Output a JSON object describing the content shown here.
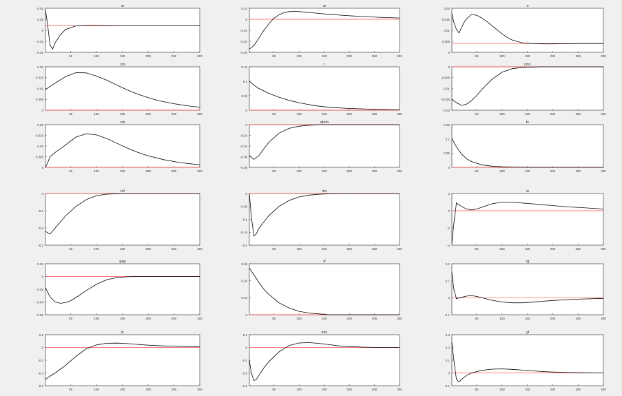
{
  "figure": {
    "background": "#f0f0f0",
    "axes_color": "#ffffff",
    "line_color": "#000000",
    "zero_color": "#ff4d4d"
  },
  "chart_data": [
    {
      "type": "line",
      "title": "w",
      "xlim": [
        1,
        300
      ],
      "ylim": [
        -0.03,
        0.02
      ],
      "yticks": [
        "0.02",
        "0.01",
        "0",
        "-0.01",
        "-0.02"
      ],
      "xticks": [
        "50",
        "100",
        "150",
        "200",
        "250",
        "300"
      ],
      "series": [
        {
          "x": [
            1,
            5,
            10,
            15,
            20,
            30,
            40,
            60,
            80,
            100,
            150,
            200,
            250,
            300
          ],
          "y": [
            0.018,
            0.002,
            -0.022,
            -0.026,
            -0.019,
            -0.01,
            -0.004,
            0.0,
            0.0005,
            0.0005,
            0.0,
            0.0,
            0.0,
            0.0
          ]
        }
      ]
    },
    {
      "type": "line",
      "title": "w",
      "xlim": [
        1,
        300
      ],
      "ylim": [
        -0.03,
        0.01
      ],
      "yticks": [
        "0.01",
        "0",
        "-0.01",
        "-0.02",
        "-0.03"
      ],
      "xticks": [
        "50",
        "100",
        "150",
        "200",
        "250",
        "300"
      ],
      "series": [
        {
          "x": [
            1,
            10,
            20,
            30,
            40,
            50,
            60,
            70,
            80,
            90,
            100,
            120,
            140,
            160,
            180,
            200,
            230,
            260,
            300
          ],
          "y": [
            -0.027,
            -0.024,
            -0.017,
            -0.01,
            -0.004,
            0.001,
            0.004,
            0.006,
            0.007,
            0.0072,
            0.007,
            0.0062,
            0.0053,
            0.0045,
            0.0038,
            0.0032,
            0.0025,
            0.0018,
            0.0012
          ]
        }
      ]
    },
    {
      "type": "line",
      "title": "n",
      "xlim": [
        1,
        300
      ],
      "ylim": [
        -0.005,
        0.02
      ],
      "yticks": [
        "0.02",
        "0.015",
        "0.01",
        "0.005",
        "0"
      ],
      "xticks": [
        "50",
        "100",
        "150",
        "200",
        "250",
        "300"
      ],
      "series": [
        {
          "x": [
            1,
            5,
            10,
            15,
            20,
            25,
            30,
            40,
            50,
            60,
            70,
            80,
            90,
            100,
            110,
            120,
            140,
            160,
            180,
            200,
            230,
            260,
            300
          ],
          "y": [
            0.017,
            0.012,
            0.008,
            0.006,
            0.009,
            0.012,
            0.014,
            0.0165,
            0.016,
            0.0145,
            0.0125,
            0.0102,
            0.0078,
            0.0055,
            0.0035,
            0.002,
            0.0004,
            0.0,
            -0.0002,
            -0.0002,
            -0.0001,
            0.0,
            0.0
          ]
        }
      ]
    },
    {
      "type": "line",
      "title": "cm",
      "xlim": [
        1,
        300
      ],
      "ylim": [
        0,
        0.02
      ],
      "yticks": [
        "0.02",
        "0.015",
        "0.01",
        "0.005",
        "0"
      ],
      "xticks": [
        "50",
        "100",
        "150",
        "200",
        "250",
        "300"
      ],
      "series": [
        {
          "x": [
            1,
            20,
            40,
            60,
            80,
            100,
            120,
            140,
            160,
            180,
            200,
            220,
            250,
            280,
            300
          ],
          "y": [
            0.0095,
            0.0125,
            0.0155,
            0.0173,
            0.0172,
            0.0157,
            0.0138,
            0.0115,
            0.0093,
            0.0074,
            0.0058,
            0.0044,
            0.003,
            0.0019,
            0.0014
          ]
        }
      ]
    },
    {
      "type": "line",
      "title": "r",
      "xlim": [
        1,
        300
      ],
      "ylim": [
        0,
        0.15
      ],
      "yticks": [
        "0.15",
        "0.1",
        "0.05",
        "0"
      ],
      "xticks": [
        "50",
        "100",
        "150",
        "200",
        "250",
        "300"
      ],
      "series": [
        {
          "x": [
            1,
            10,
            20,
            40,
            60,
            80,
            100,
            130,
            160,
            200,
            250,
            300
          ],
          "y": [
            0.1,
            0.087,
            0.075,
            0.058,
            0.045,
            0.034,
            0.026,
            0.016,
            0.01,
            0.006,
            0.003,
            0.001
          ]
        }
      ]
    },
    {
      "type": "line",
      "title": "cm1",
      "xlim": [
        1,
        300
      ],
      "ylim": [
        -0.02,
        0
      ],
      "yticks": [
        "0",
        "-0.005",
        "-0.01",
        "-0.015",
        "-0.02"
      ],
      "xticks": [
        "50",
        "100",
        "150",
        "200",
        "250",
        "300"
      ],
      "series": [
        {
          "x": [
            1,
            10,
            20,
            30,
            40,
            50,
            60,
            80,
            100,
            120,
            140,
            160,
            180,
            200,
            230,
            260,
            300
          ],
          "y": [
            -0.015,
            -0.0165,
            -0.0178,
            -0.0172,
            -0.0155,
            -0.0132,
            -0.0105,
            -0.0058,
            -0.0025,
            -0.0009,
            -0.0003,
            -0.0001,
            0.0,
            0.0,
            0.0,
            0.0,
            0.0
          ]
        }
      ]
    },
    {
      "type": "line",
      "title": "cm",
      "xlim": [
        1,
        300
      ],
      "ylim": [
        0,
        0.02
      ],
      "yticks": [
        "0.02",
        "0.015",
        "0.01",
        "0.005",
        "0"
      ],
      "xticks": [
        "50",
        "100",
        "150",
        "200",
        "250",
        "300"
      ],
      "series": [
        {
          "x": [
            1,
            5,
            10,
            20,
            40,
            60,
            80,
            100,
            120,
            140,
            160,
            180,
            200,
            230,
            260,
            300
          ],
          "y": [
            0.0,
            0.002,
            0.005,
            0.007,
            0.0105,
            0.0142,
            0.0157,
            0.0152,
            0.0135,
            0.0112,
            0.009,
            0.007,
            0.0054,
            0.0036,
            0.0023,
            0.0012
          ]
        }
      ]
    },
    {
      "type": "line",
      "title": "dinfo",
      "xlim": [
        1,
        300
      ],
      "ylim": [
        -0.08,
        0
      ],
      "yticks": [
        "0",
        "-0.02",
        "-0.04",
        "-0.06",
        "-0.08"
      ],
      "xticks": [
        "50",
        "100",
        "150",
        "200",
        "250",
        "300"
      ],
      "series": [
        {
          "x": [
            1,
            10,
            20,
            30,
            40,
            60,
            80,
            100,
            120,
            140,
            160,
            180,
            200,
            230,
            260,
            300
          ],
          "y": [
            -0.058,
            -0.065,
            -0.058,
            -0.045,
            -0.033,
            -0.016,
            -0.007,
            -0.003,
            -0.001,
            0.0,
            0.0,
            0.0,
            0.0,
            0.0,
            0.0,
            0.0
          ]
        }
      ]
    },
    {
      "type": "line",
      "title": "fc",
      "xlim": [
        1,
        300
      ],
      "ylim": [
        0,
        0.15
      ],
      "yticks": [
        "0.15",
        "0.1",
        "0.05",
        "0"
      ],
      "xticks": [
        "50",
        "100",
        "150",
        "200",
        "250",
        "300"
      ],
      "series": [
        {
          "x": [
            1,
            5,
            10,
            20,
            30,
            40,
            60,
            80,
            100,
            130,
            160,
            200,
            250,
            300
          ],
          "y": [
            0.1,
            0.088,
            0.072,
            0.047,
            0.03,
            0.02,
            0.009,
            0.004,
            0.002,
            0.001,
            0.0,
            0.0,
            0.0,
            0.0
          ]
        }
      ]
    },
    {
      "type": "line",
      "title": "inf",
      "xlim": [
        1,
        300
      ],
      "ylim": [
        -0.3,
        0
      ],
      "yticks": [
        "0",
        "-0.1",
        "-0.2",
        "-0.3"
      ],
      "xticks": [
        "50",
        "100",
        "150",
        "200",
        "250",
        "300"
      ],
      "series": [
        {
          "x": [
            1,
            10,
            20,
            30,
            40,
            60,
            80,
            100,
            120,
            140,
            160,
            180,
            200,
            230,
            260,
            300
          ],
          "y": [
            -0.22,
            -0.235,
            -0.2,
            -0.165,
            -0.13,
            -0.075,
            -0.035,
            -0.012,
            -0.004,
            -0.001,
            0.0,
            0.0,
            0.0,
            0.0,
            0.0,
            0.0
          ]
        }
      ]
    },
    {
      "type": "line",
      "title": "inv",
      "xlim": [
        1,
        300
      ],
      "ylim": [
        -0.2,
        0
      ],
      "yticks": [
        "0",
        "-0.05",
        "-0.1",
        "-0.15",
        "-0.2"
      ],
      "xticks": [
        "50",
        "100",
        "150",
        "200",
        "250",
        "300"
      ],
      "series": [
        {
          "x": [
            1,
            5,
            10,
            15,
            20,
            30,
            40,
            60,
            80,
            100,
            120,
            140,
            160,
            200,
            250,
            300
          ],
          "y": [
            0.0,
            -0.09,
            -0.165,
            -0.155,
            -0.135,
            -0.11,
            -0.085,
            -0.05,
            -0.027,
            -0.013,
            -0.006,
            -0.003,
            -0.001,
            0.0,
            0.0,
            0.0
          ]
        }
      ]
    },
    {
      "type": "line",
      "title": "w",
      "xlim": [
        1,
        300
      ],
      "ylim": [
        -4,
        2
      ],
      "yticks": [
        "2",
        "0",
        "-2",
        "-4"
      ],
      "xticks": [
        "50",
        "100",
        "150",
        "200",
        "250",
        "300"
      ],
      "series": [
        {
          "x": [
            1,
            5,
            10,
            20,
            30,
            40,
            50,
            60,
            80,
            100,
            120,
            140,
            160,
            180,
            200,
            230,
            260,
            300
          ],
          "y": [
            -3.8,
            -1.5,
            0.9,
            0.5,
            0.2,
            0.1,
            0.2,
            0.4,
            0.8,
            1.0,
            1.0,
            0.9,
            0.8,
            0.7,
            0.6,
            0.45,
            0.35,
            0.2
          ]
        }
      ]
    },
    {
      "type": "line",
      "title": "gap",
      "xlim": [
        1,
        300
      ],
      "ylim": [
        -0.06,
        0.02
      ],
      "yticks": [
        "0.02",
        "0",
        "-0.02",
        "-0.04",
        "-0.06"
      ],
      "xticks": [
        "50",
        "100",
        "150",
        "200",
        "250",
        "300"
      ],
      "series": [
        {
          "x": [
            1,
            10,
            20,
            30,
            40,
            50,
            60,
            80,
            100,
            120,
            140,
            160,
            180,
            200,
            230,
            260,
            300
          ],
          "y": [
            -0.018,
            -0.032,
            -0.04,
            -0.042,
            -0.041,
            -0.038,
            -0.033,
            -0.022,
            -0.012,
            -0.005,
            -0.0015,
            -0.0004,
            0.0,
            0.0,
            0.0,
            0.0,
            0.0
          ]
        }
      ]
    },
    {
      "type": "line",
      "title": "rf",
      "xlim": [
        1,
        300
      ],
      "ylim": [
        0,
        0.06
      ],
      "yticks": [
        "0.06",
        "0.04",
        "0.02",
        "0"
      ],
      "xticks": [
        "50",
        "100",
        "150",
        "200",
        "250",
        "300"
      ],
      "series": [
        {
          "x": [
            1,
            10,
            20,
            30,
            40,
            60,
            80,
            100,
            120,
            140,
            160,
            200,
            250,
            300
          ],
          "y": [
            0.055,
            0.047,
            0.038,
            0.03,
            0.024,
            0.014,
            0.008,
            0.004,
            0.002,
            0.001,
            0.0,
            0.0,
            0.0,
            0.0
          ]
        }
      ]
    },
    {
      "type": "line",
      "title": "rg",
      "xlim": [
        1,
        300
      ],
      "ylim": [
        -0.1,
        0.2
      ],
      "yticks": [
        "0.2",
        "0.1",
        "0",
        "-0.1"
      ],
      "xticks": [
        "50",
        "100",
        "150",
        "200",
        "250",
        "300"
      ],
      "series": [
        {
          "x": [
            1,
            5,
            10,
            20,
            30,
            40,
            50,
            60,
            80,
            100,
            120,
            140,
            160,
            180,
            200,
            230,
            260,
            300
          ],
          "y": [
            0.15,
            0.05,
            -0.005,
            0.002,
            0.01,
            0.012,
            0.008,
            0.0,
            -0.015,
            -0.025,
            -0.03,
            -0.03,
            -0.026,
            -0.021,
            -0.016,
            -0.011,
            -0.007,
            -0.004
          ]
        }
      ]
    },
    {
      "type": "line",
      "title": "lc",
      "xlim": [
        1,
        300
      ],
      "ylim": [
        -0.3,
        0.1
      ],
      "yticks": [
        "0.1",
        "0",
        "-0.1",
        "-0.2",
        "-0.3"
      ],
      "xticks": [
        "50",
        "100",
        "150",
        "200",
        "250",
        "300"
      ],
      "series": [
        {
          "x": [
            1,
            10,
            20,
            30,
            40,
            60,
            80,
            100,
            120,
            140,
            160,
            180,
            200,
            230,
            260,
            300
          ],
          "y": [
            -0.25,
            -0.225,
            -0.2,
            -0.17,
            -0.14,
            -0.07,
            -0.01,
            0.02,
            0.033,
            0.034,
            0.03,
            0.024,
            0.018,
            0.012,
            0.008,
            0.005
          ]
        }
      ]
    },
    {
      "type": "line",
      "title": "lmc",
      "xlim": [
        1,
        300
      ],
      "ylim": [
        -0.3,
        0.1
      ],
      "yticks": [
        "0.1",
        "0",
        "-0.1",
        "-0.2",
        "-0.3"
      ],
      "xticks": [
        "50",
        "100",
        "150",
        "200",
        "250",
        "300"
      ],
      "series": [
        {
          "x": [
            1,
            5,
            10,
            15,
            20,
            30,
            40,
            60,
            80,
            100,
            120,
            140,
            160,
            180,
            200,
            230,
            260,
            300
          ],
          "y": [
            -0.1,
            -0.2,
            -0.26,
            -0.25,
            -0.22,
            -0.16,
            -0.11,
            -0.035,
            0.015,
            0.035,
            0.038,
            0.032,
            0.022,
            0.012,
            0.006,
            0.002,
            0.0,
            0.0
          ]
        }
      ]
    },
    {
      "type": "line",
      "title": "yf",
      "xlim": [
        1,
        300
      ],
      "ylim": [
        -0.1,
        0.3
      ],
      "yticks": [
        "0.3",
        "0.2",
        "0.1",
        "0",
        "-0.1"
      ],
      "xticks": [
        "50",
        "100",
        "150",
        "200",
        "250",
        "300"
      ],
      "series": [
        {
          "x": [
            1,
            5,
            10,
            15,
            20,
            30,
            40,
            60,
            80,
            100,
            120,
            140,
            160,
            180,
            200,
            230,
            260,
            300
          ],
          "y": [
            0.24,
            0.1,
            -0.05,
            -0.07,
            -0.05,
            -0.02,
            0.0,
            0.02,
            0.03,
            0.032,
            0.028,
            0.022,
            0.016,
            0.011,
            0.007,
            0.003,
            0.001,
            0.0
          ]
        }
      ]
    }
  ]
}
